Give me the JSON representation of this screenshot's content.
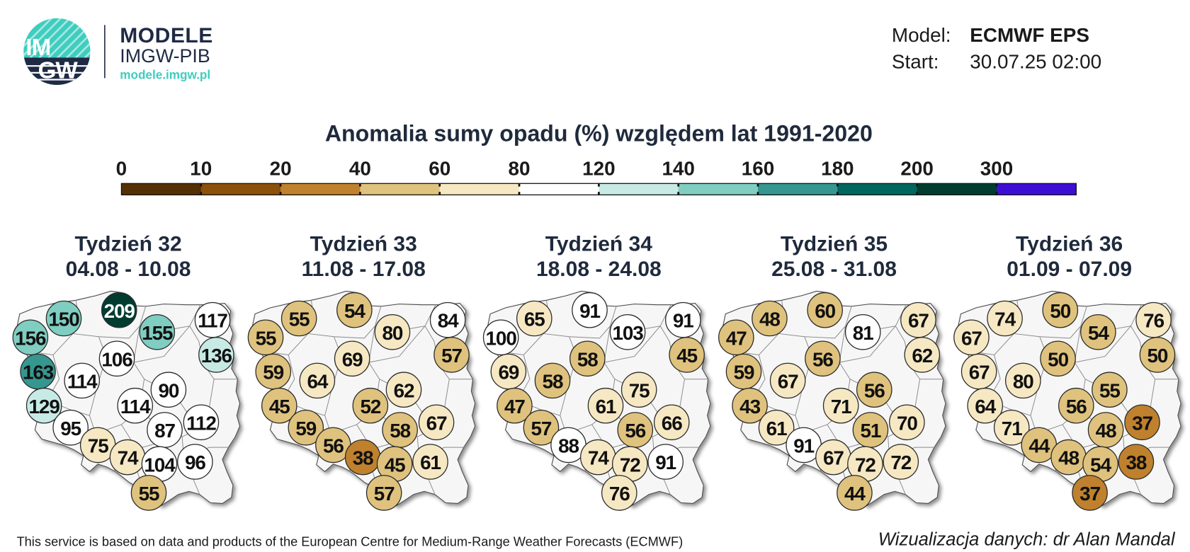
{
  "logo": {
    "mark_top": "IM",
    "mark_bottom": "GW",
    "name": "MODELE",
    "org": "IMGW-PIB",
    "url": "modele.imgw.pl"
  },
  "brand": {
    "navy": "#1f2a44",
    "teal": "#3fcdbf"
  },
  "model_info": {
    "model_label": "Model:",
    "model_value": "ECMWF EPS",
    "start_label": "Start:",
    "start_value": "30.07.25 02:00"
  },
  "title": "Anomalia sumy opadu (%) względem lat 1991-2020",
  "legend": {
    "thresholds": [
      0,
      10,
      20,
      40,
      60,
      80,
      120,
      140,
      160,
      180,
      200,
      300
    ],
    "colors": [
      "#543005",
      "#8c510a",
      "#bf812d",
      "#dfc27d",
      "#f6e8c3",
      "#ffffff",
      "#c7eae5",
      "#80cdc1",
      "#35978f",
      "#01665e",
      "#003c30",
      "#3d0fd4"
    ]
  },
  "weeks": [
    {
      "label": "Tydzień 32",
      "dates": "04.08 - 10.08",
      "values": [
        209,
        150,
        155,
        117,
        156,
        136,
        106,
        163,
        114,
        90,
        129,
        114,
        112,
        95,
        87,
        75,
        74,
        104,
        96,
        55
      ]
    },
    {
      "label": "Tydzień 33",
      "dates": "11.08 - 17.08",
      "values": [
        54,
        55,
        80,
        84,
        55,
        57,
        69,
        59,
        64,
        62,
        45,
        52,
        67,
        59,
        58,
        56,
        38,
        45,
        61,
        57
      ]
    },
    {
      "label": "Tydzień 34",
      "dates": "18.08 - 24.08",
      "values": [
        91,
        65,
        103,
        91,
        100,
        45,
        58,
        69,
        58,
        75,
        47,
        61,
        66,
        57,
        56,
        88,
        74,
        72,
        91,
        76
      ]
    },
    {
      "label": "Tydzień 35",
      "dates": "25.08 - 31.08",
      "values": [
        60,
        48,
        81,
        67,
        47,
        62,
        56,
        59,
        67,
        56,
        43,
        71,
        70,
        61,
        51,
        91,
        67,
        72,
        72,
        44
      ]
    },
    {
      "label": "Tydzień 36",
      "dates": "01.09 - 07.09",
      "values": [
        50,
        74,
        54,
        76,
        67,
        50,
        50,
        67,
        80,
        55,
        64,
        56,
        37,
        71,
        48,
        44,
        48,
        54,
        38,
        37
      ]
    }
  ],
  "footer": {
    "source": "This service is based on data and products of the European Centre for Medium-Range Weather Forecasts (ECMWF)",
    "credit": "Wizualizacja danych: dr Alan Mandal"
  }
}
